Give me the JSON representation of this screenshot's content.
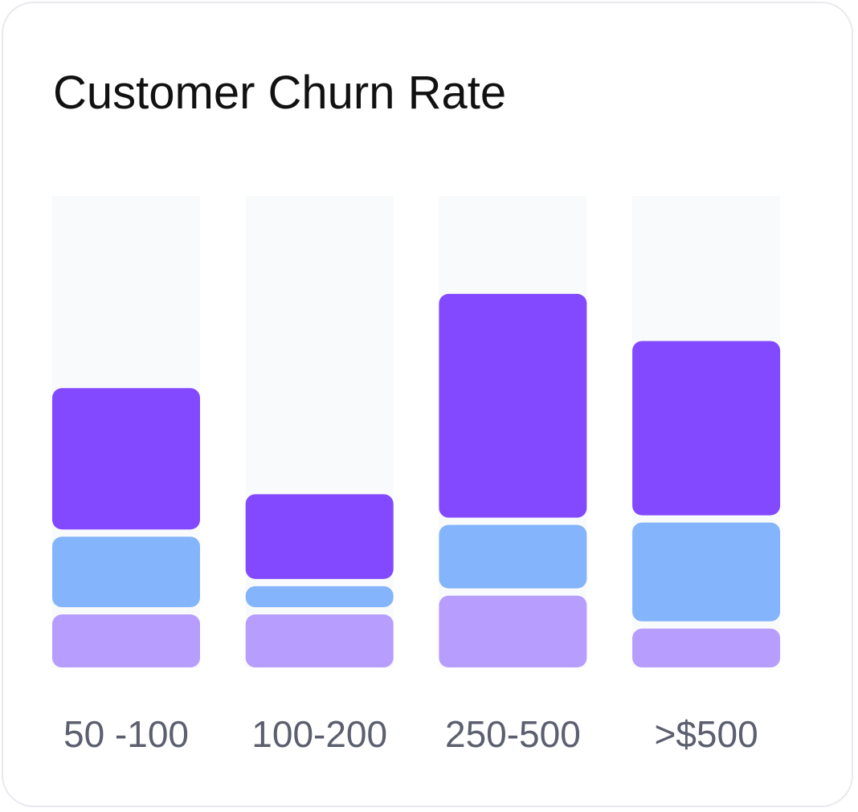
{
  "chart_data": {
    "type": "stacked_bar",
    "title": "Customer Churn Rate",
    "categories": [
      "50 -100",
      "100-200",
      "250-500",
      ">$500"
    ],
    "series": [
      {
        "color": "#b69dfe",
        "values": [
          12,
          12,
          16,
          9
        ]
      },
      {
        "color": "#84b4fb",
        "values": [
          16.5,
          6,
          15,
          22.5
        ]
      },
      {
        "color": "#8349ff",
        "values": [
          31.5,
          19.5,
          49,
          38.5
        ]
      }
    ],
    "ylim": [
      0,
      100
    ],
    "track_color": "#f9fafb"
  }
}
